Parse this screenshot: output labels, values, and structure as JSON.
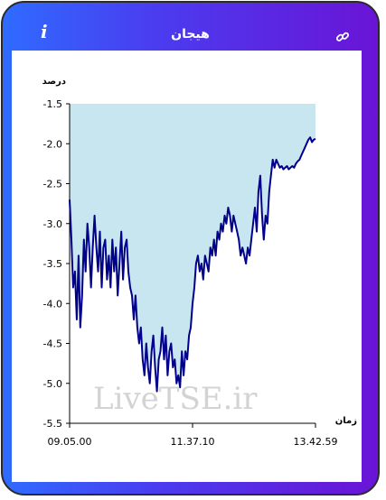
{
  "header": {
    "title": "هیجان",
    "info_icon": "info-icon",
    "link_icon": "link-icon"
  },
  "colors": {
    "frame_start": "#2f6bff",
    "frame_end": "#6a14d6",
    "line": "#00008b",
    "area": "#c8e6ef"
  },
  "watermark": "LiveTSE.ir",
  "chart_data": {
    "type": "area",
    "ylabel": "درصد",
    "xlabel": "زمان",
    "ylim": [
      -5.5,
      -1.5
    ],
    "yticks": [
      "-1.5",
      "-2.0",
      "-2.5",
      "-3.0",
      "-3.5",
      "-4.0",
      "-4.5",
      "-5.0",
      "-5.5"
    ],
    "xticks": [
      "09.05.00",
      "11.37.10",
      "13.42.59"
    ],
    "grid": false,
    "series": [
      {
        "values": [
          -2.7,
          -3.2,
          -3.8,
          -3.6,
          -4.2,
          -3.4,
          -4.3,
          -3.9,
          -3.2,
          -3.6,
          -3.0,
          -3.3,
          -3.8,
          -3.3,
          -2.9,
          -3.3,
          -3.6,
          -3.1,
          -3.8,
          -3.3,
          -3.2,
          -3.7,
          -3.4,
          -3.8,
          -3.2,
          -3.6,
          -3.3,
          -3.9,
          -3.5,
          -3.1,
          -3.7,
          -3.3,
          -3.2,
          -3.6,
          -3.8,
          -3.9,
          -4.2,
          -3.9,
          -4.3,
          -4.5,
          -4.3,
          -4.7,
          -4.9,
          -4.5,
          -4.8,
          -5.0,
          -4.6,
          -4.4,
          -4.8,
          -5.1,
          -4.7,
          -4.6,
          -4.3,
          -4.7,
          -4.4,
          -4.9,
          -4.6,
          -4.5,
          -4.8,
          -4.7,
          -5.0,
          -4.9,
          -5.05,
          -4.6,
          -4.9,
          -4.6,
          -4.7,
          -4.4,
          -4.3,
          -4.0,
          -3.8,
          -3.5,
          -3.4,
          -3.6,
          -3.5,
          -3.7,
          -3.4,
          -3.5,
          -3.6,
          -3.3,
          -3.4,
          -3.2,
          -3.4,
          -3.1,
          -3.2,
          -3.0,
          -3.1,
          -2.9,
          -3.0,
          -2.8,
          -2.9,
          -3.1,
          -2.9,
          -3.0,
          -3.1,
          -3.2,
          -3.4,
          -3.3,
          -3.4,
          -3.5,
          -3.3,
          -3.4,
          -3.2,
          -3.0,
          -2.8,
          -3.1,
          -2.6,
          -2.4,
          -2.9,
          -3.2,
          -2.9,
          -3.0,
          -2.6,
          -2.4,
          -2.2,
          -2.3,
          -2.2,
          -2.25,
          -2.3,
          -2.28,
          -2.32,
          -2.3,
          -2.28,
          -2.32,
          -2.3,
          -2.28,
          -2.3,
          -2.25,
          -2.22,
          -2.2,
          -2.15,
          -2.1,
          -2.05,
          -2.0,
          -1.95,
          -1.92,
          -1.98,
          -1.95,
          -1.94
        ]
      }
    ]
  }
}
